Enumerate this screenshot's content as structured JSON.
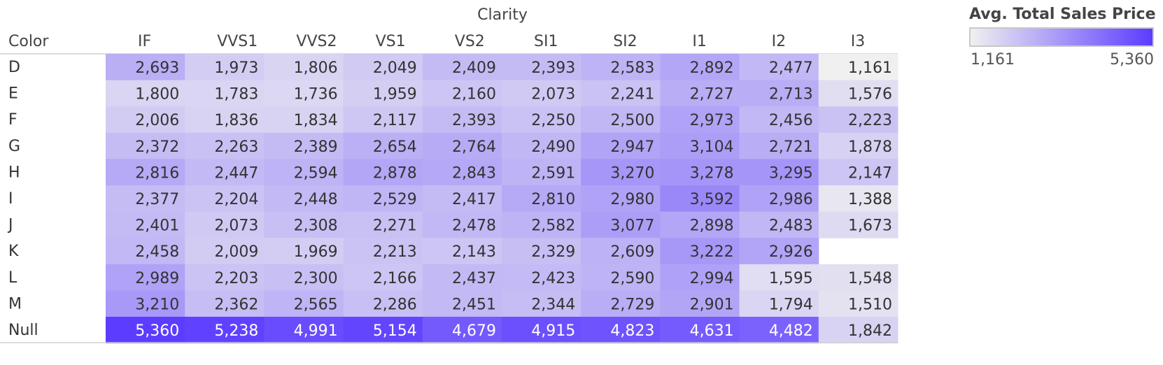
{
  "chart_data": {
    "type": "heatmap",
    "column_header": "Clarity",
    "row_header": "Color",
    "columns": [
      "IF",
      "VVS1",
      "VVS2",
      "VS1",
      "VS2",
      "SI1",
      "SI2",
      "I1",
      "I2",
      "I3"
    ],
    "rows": [
      "D",
      "E",
      "F",
      "G",
      "H",
      "I",
      "J",
      "K",
      "L",
      "M",
      "Null"
    ],
    "values": [
      [
        2693,
        1973,
        1806,
        2049,
        2409,
        2393,
        2583,
        2892,
        2477,
        1161
      ],
      [
        1800,
        1783,
        1736,
        1959,
        2160,
        2073,
        2241,
        2727,
        2713,
        1576
      ],
      [
        2006,
        1836,
        1834,
        2117,
        2393,
        2250,
        2500,
        2973,
        2456,
        2223
      ],
      [
        2372,
        2263,
        2389,
        2654,
        2764,
        2490,
        2947,
        3104,
        2721,
        1878
      ],
      [
        2816,
        2447,
        2594,
        2878,
        2843,
        2591,
        3270,
        3278,
        3295,
        2147
      ],
      [
        2377,
        2204,
        2448,
        2529,
        2417,
        2810,
        2980,
        3592,
        2986,
        1388
      ],
      [
        2401,
        2073,
        2308,
        2271,
        2478,
        2582,
        3077,
        2898,
        2483,
        1673
      ],
      [
        2458,
        2009,
        1969,
        2213,
        2143,
        2329,
        2609,
        3222,
        2926,
        null
      ],
      [
        2989,
        2203,
        2300,
        2166,
        2437,
        2423,
        2590,
        2994,
        1595,
        1548
      ],
      [
        3210,
        2362,
        2565,
        2286,
        2451,
        2344,
        2729,
        2901,
        1794,
        1510
      ],
      [
        5360,
        5238,
        4991,
        5154,
        4679,
        4915,
        4823,
        4631,
        4482,
        1842
      ]
    ],
    "legend": {
      "title": "Avg. Total Sales Price",
      "min": 1161,
      "max": 5360,
      "min_label": "1,161",
      "max_label": "5,360",
      "color_low": "#f0f0f0",
      "color_high": "#5c3cff"
    }
  }
}
